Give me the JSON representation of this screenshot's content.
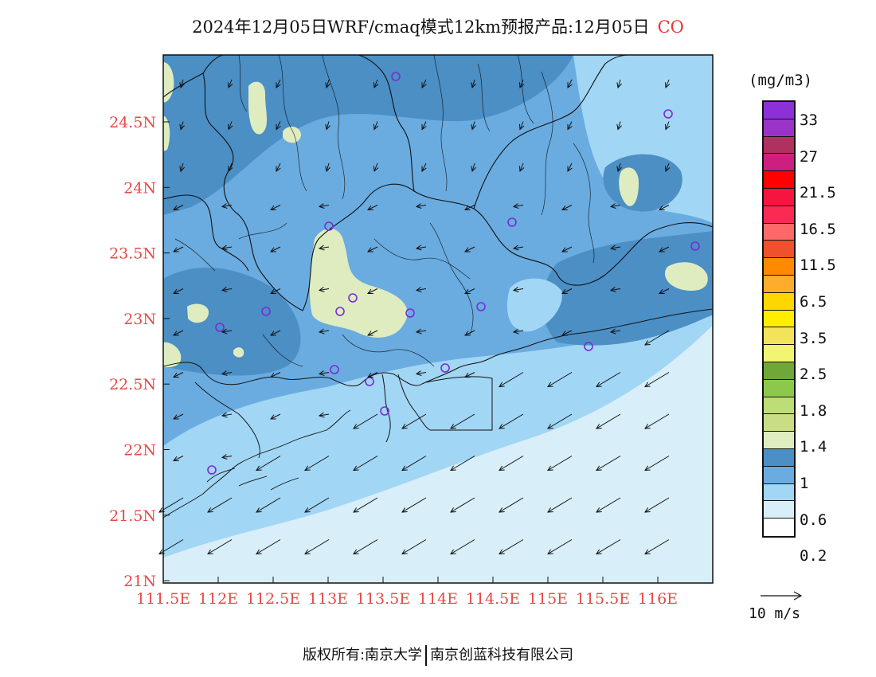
{
  "title": {
    "text": "2024年12月05日WRF/cmaq模式12km预报产品:12月05日",
    "species": "CO"
  },
  "colors": {
    "title_species": "#e33333",
    "axis_labels": "#e84848",
    "sea": "#d8eef8"
  },
  "map": {
    "lat_ticks": [
      "24.5N",
      "24N",
      "23.5N",
      "23N",
      "22.5N",
      "22N",
      "21.5N",
      "21N"
    ],
    "lon_ticks": [
      "111.5E",
      "112E",
      "112.5E",
      "113E",
      "113.5E",
      "114E",
      "114.5E",
      "115E",
      "115.5E",
      "116E"
    ]
  },
  "legend": {
    "units": "(mg/m3)",
    "swatches": [
      "#8e30d8",
      "#9a34c8",
      "#b03060",
      "#cc1f7e",
      "#ff0000",
      "#f5153f",
      "#fb2a54",
      "#ff6868",
      "#f0502c",
      "#ff8a00",
      "#ffab2c",
      "#ffd700",
      "#ffee00",
      "#f3e35a",
      "#f2f572",
      "#6fa838",
      "#8ec84a",
      "#bddd77",
      "#c8dd84",
      "#dfecc0",
      "#4b8fc5",
      "#6aace0",
      "#a2d6f5",
      "#d8eef8",
      "#ffffff"
    ],
    "labels": [
      "33",
      "27",
      "21.5",
      "16.5",
      "11.5",
      "6.5",
      "3.5",
      "2.5",
      "1.8",
      "1.4",
      "1",
      "0.6",
      "0.2"
    ],
    "vector_reference": "10 m/s"
  },
  "footer": {
    "left": "版权所有:南京大学",
    "right": "南京创蓝科技有限公司"
  }
}
